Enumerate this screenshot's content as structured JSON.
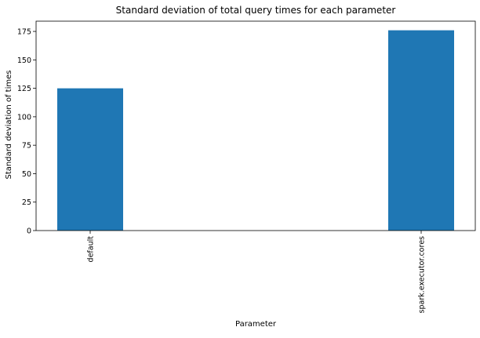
{
  "chart_data": {
    "type": "bar",
    "title": "Standard deviation of total query times for each parameter",
    "xlabel": "Parameter",
    "ylabel": "Standard deviation of times",
    "categories": [
      "default",
      "spark.executor.cores"
    ],
    "values": [
      125,
      176
    ],
    "ylim": [
      0,
      184
    ],
    "yticks": [
      0,
      25,
      50,
      75,
      100,
      125,
      150,
      175
    ],
    "grid": false,
    "bar_color": "#1f77b4"
  }
}
